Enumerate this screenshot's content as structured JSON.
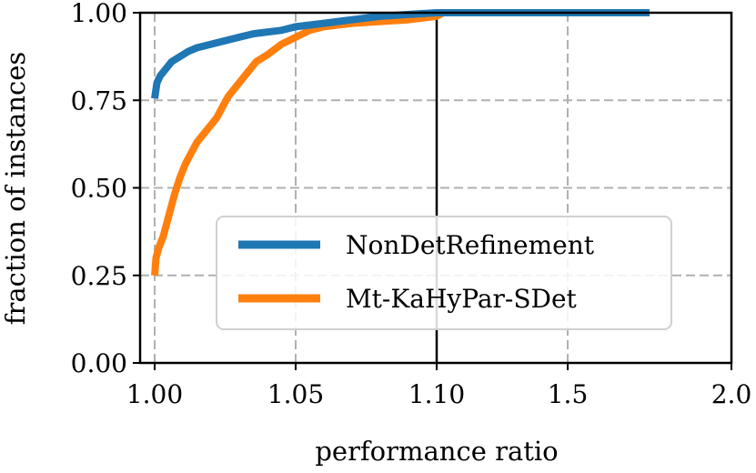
{
  "chart_data": {
    "type": "line",
    "title": "",
    "xlabel": "performance ratio",
    "ylabel": "fraction of instances",
    "x_scale": "piecewise-linear",
    "x_segments": [
      [
        1.0,
        1.1
      ],
      [
        1.1,
        2.0
      ]
    ],
    "xlim": [
      0.995,
      2.0
    ],
    "ylim": [
      0.0,
      1.0
    ],
    "x_ticks": [
      1.0,
      1.05,
      1.1,
      1.5,
      2.0
    ],
    "x_tick_labels": [
      "1.00",
      "1.05",
      "1.10",
      "1.5",
      "2.0"
    ],
    "y_ticks": [
      0.0,
      0.25,
      0.5,
      0.75,
      1.0
    ],
    "y_tick_labels": [
      "0.00",
      "0.25",
      "0.50",
      "0.75",
      "1.00"
    ],
    "grid": true,
    "legend_position": "lower-right",
    "segment_divider_at": 1.1,
    "series": [
      {
        "name": "NonDetRefinement",
        "color": "#1f77b4",
        "points": [
          [
            1.0,
            0.755
          ],
          [
            1.0008,
            0.8
          ],
          [
            1.002,
            0.82
          ],
          [
            1.004,
            0.84
          ],
          [
            1.006,
            0.86
          ],
          [
            1.009,
            0.875
          ],
          [
            1.012,
            0.89
          ],
          [
            1.015,
            0.9
          ],
          [
            1.02,
            0.91
          ],
          [
            1.025,
            0.92
          ],
          [
            1.03,
            0.93
          ],
          [
            1.035,
            0.94
          ],
          [
            1.04,
            0.945
          ],
          [
            1.045,
            0.95
          ],
          [
            1.05,
            0.96
          ],
          [
            1.06,
            0.97
          ],
          [
            1.07,
            0.98
          ],
          [
            1.08,
            0.99
          ],
          [
            1.09,
            0.995
          ],
          [
            1.1,
            1.0
          ],
          [
            1.3,
            1.0
          ],
          [
            1.6,
            1.0
          ],
          [
            1.75,
            1.0
          ]
        ]
      },
      {
        "name": "Mt-KaHyPar-SDet",
        "color": "#ff7f0e",
        "points": [
          [
            1.0,
            0.25
          ],
          [
            1.0005,
            0.3
          ],
          [
            1.0015,
            0.33
          ],
          [
            1.003,
            0.36
          ],
          [
            1.005,
            0.42
          ],
          [
            1.007,
            0.48
          ],
          [
            1.009,
            0.53
          ],
          [
            1.011,
            0.57
          ],
          [
            1.013,
            0.6
          ],
          [
            1.015,
            0.63
          ],
          [
            1.018,
            0.66
          ],
          [
            1.02,
            0.68
          ],
          [
            1.022,
            0.7
          ],
          [
            1.024,
            0.73
          ],
          [
            1.026,
            0.76
          ],
          [
            1.028,
            0.78
          ],
          [
            1.03,
            0.8
          ],
          [
            1.033,
            0.83
          ],
          [
            1.036,
            0.86
          ],
          [
            1.04,
            0.88
          ],
          [
            1.045,
            0.91
          ],
          [
            1.05,
            0.93
          ],
          [
            1.055,
            0.95
          ],
          [
            1.06,
            0.96
          ],
          [
            1.07,
            0.97
          ],
          [
            1.08,
            0.975
          ],
          [
            1.09,
            0.98
          ],
          [
            1.1,
            0.99
          ],
          [
            1.11,
            0.995
          ],
          [
            1.12,
            1.0
          ],
          [
            1.3,
            1.0
          ],
          [
            1.6,
            1.0
          ],
          [
            1.75,
            1.0
          ]
        ]
      }
    ]
  }
}
